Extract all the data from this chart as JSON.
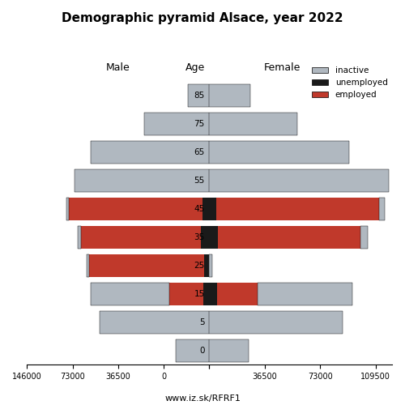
{
  "title": "Demographic pyramid Alsace, year 2022",
  "subtitle_left": "Male",
  "subtitle_center": "Age",
  "subtitle_right": "Female",
  "watermark": "www.iz.sk/RFRF1",
  "age_groups": [
    0,
    5,
    15,
    25,
    35,
    45,
    55,
    65,
    75,
    85
  ],
  "male": {
    "inactive": [
      27000,
      88000,
      63000,
      2000,
      3000,
      2000,
      108000,
      95000,
      52000,
      17000
    ],
    "unemployed": [
      0,
      0,
      5000,
      4000,
      6500,
      5500,
      0,
      0,
      0,
      0
    ],
    "employed": [
      0,
      0,
      27000,
      92000,
      96000,
      107000,
      0,
      0,
      0,
      0
    ]
  },
  "female": {
    "inactive": [
      26000,
      88000,
      62000,
      2000,
      4500,
      4000,
      118000,
      92000,
      58000,
      27000
    ],
    "unemployed": [
      0,
      0,
      5000,
      0,
      5500,
      4500,
      0,
      0,
      0,
      0
    ],
    "employed": [
      0,
      0,
      27000,
      0,
      94000,
      107000,
      0,
      0,
      0,
      0
    ]
  },
  "colors": {
    "inactive": "#b0b8c0",
    "unemployed": "#1a1a1a",
    "employed": "#c0392b"
  },
  "xlim_left": 146000,
  "xlim_right": 120000,
  "bar_height": 0.8
}
